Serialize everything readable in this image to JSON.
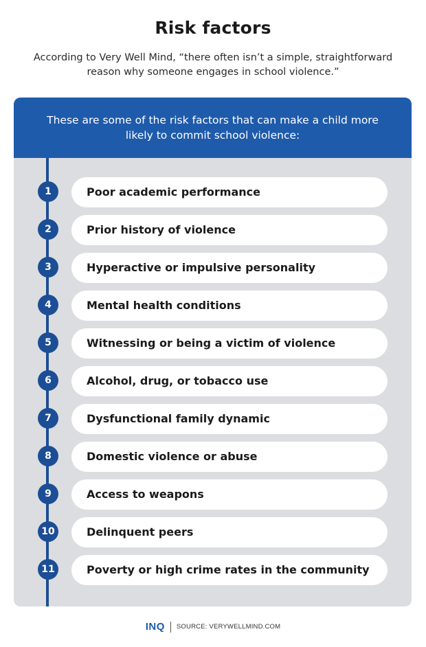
{
  "title": "Risk factors",
  "subtitle": "According to Very Well Mind, “there often isn’t a simple, straightforward reason why someone engages in school violence.”",
  "panel": {
    "header": "These are some of the risk factors that can make a child more likely to commit school violence:",
    "items": [
      {
        "number": "1",
        "label": "Poor academic performance"
      },
      {
        "number": "2",
        "label": "Prior history of violence"
      },
      {
        "number": "3",
        "label": "Hyperactive or impulsive personality"
      },
      {
        "number": "4",
        "label": "Mental health conditions"
      },
      {
        "number": "5",
        "label": "Witnessing or being a victim of violence"
      },
      {
        "number": "6",
        "label": "Alcohol, drug, or tobacco use"
      },
      {
        "number": "7",
        "label": "Dysfunctional family dynamic"
      },
      {
        "number": "8",
        "label": "Domestic violence or abuse"
      },
      {
        "number": "9",
        "label": "Access to weapons"
      },
      {
        "number": "10",
        "label": "Delinquent peers"
      },
      {
        "number": "11",
        "label": "Poverty or high crime rates in the community"
      }
    ]
  },
  "footer": {
    "brand": "INQ",
    "source": "SOURCE: VERYWELLMIND.COM"
  },
  "colors": {
    "accent": "#1f5bab",
    "timeline": "#1c4e96",
    "panel_bg": "#dcdde0"
  }
}
